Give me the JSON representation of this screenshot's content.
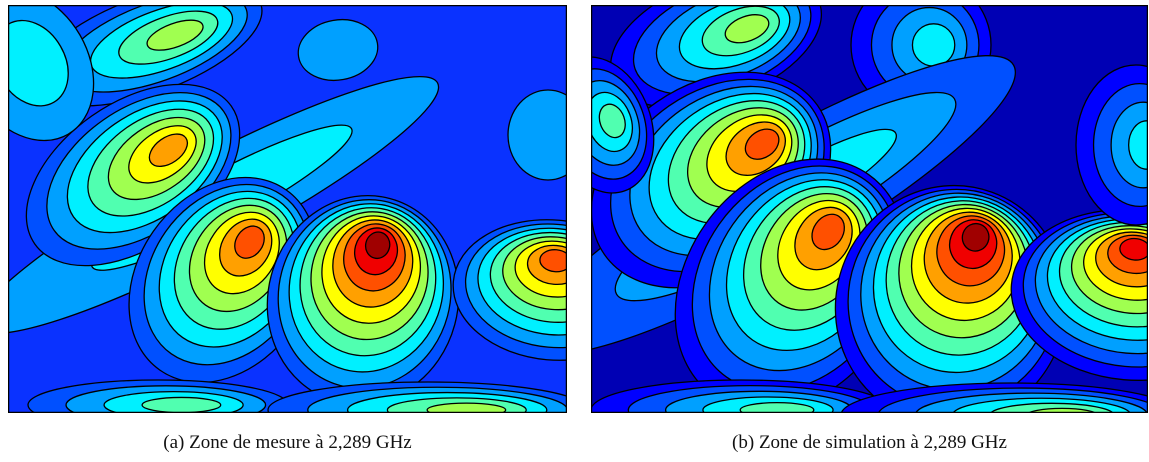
{
  "figures": [
    {
      "caption": "(a) Zone de mesure à 2,289 GHz"
    },
    {
      "caption": "(b) Zone de simulation à 2,289 GHz"
    }
  ]
}
